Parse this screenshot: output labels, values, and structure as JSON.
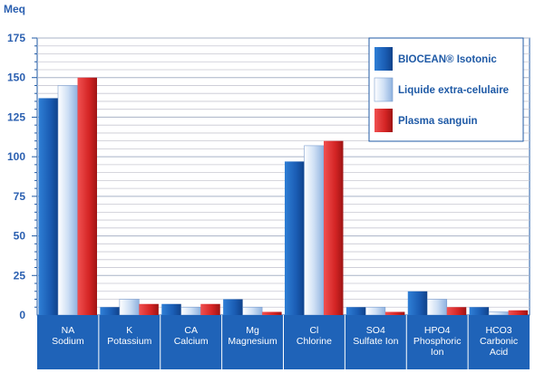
{
  "chart_data": {
    "type": "bar",
    "ylabel": "Meq",
    "ylim": [
      0,
      175
    ],
    "y_ticks": [
      0,
      25,
      50,
      75,
      100,
      125,
      150,
      175
    ],
    "grid": true,
    "legend_position": "top-right",
    "categories": [
      {
        "line1": "NA",
        "line2": "Sodium",
        "line3": ""
      },
      {
        "line1": "K",
        "line2": "Potassium",
        "line3": ""
      },
      {
        "line1": "CA",
        "line2": "Calcium",
        "line3": ""
      },
      {
        "line1": "Mg",
        "line2": "Magnesium",
        "line3": ""
      },
      {
        "line1": "Cl",
        "line2": "Chlorine",
        "line3": ""
      },
      {
        "line1": "SO4",
        "line2": "Sulfate Ion",
        "line3": ""
      },
      {
        "line1": "HPO4",
        "line2": "Phosphoric",
        "line3": "Ion"
      },
      {
        "line1": "HCO3",
        "line2": "Carbonic",
        "line3": "Acid"
      }
    ],
    "series": [
      {
        "name": "BIOCEAN® Isotonic",
        "color": "#1f63b8",
        "values": [
          137,
          5,
          7,
          10,
          97,
          5,
          15,
          5
        ]
      },
      {
        "name": "Liquide extra-celulaire",
        "color": "#b9d0ef",
        "values": [
          145,
          10,
          5,
          5,
          107,
          5,
          10,
          2
        ]
      },
      {
        "name": "Plasma sanguin",
        "color": "#d42a2a",
        "values": [
          150,
          7,
          7,
          2,
          110,
          2,
          5,
          3
        ]
      }
    ],
    "colors": {
      "axis": "#1f5aa6",
      "grid": "#c8c8d2",
      "tick_text": "#2a5fb0",
      "category_band": "#1f63b8",
      "category_text": "#ffffff"
    }
  }
}
